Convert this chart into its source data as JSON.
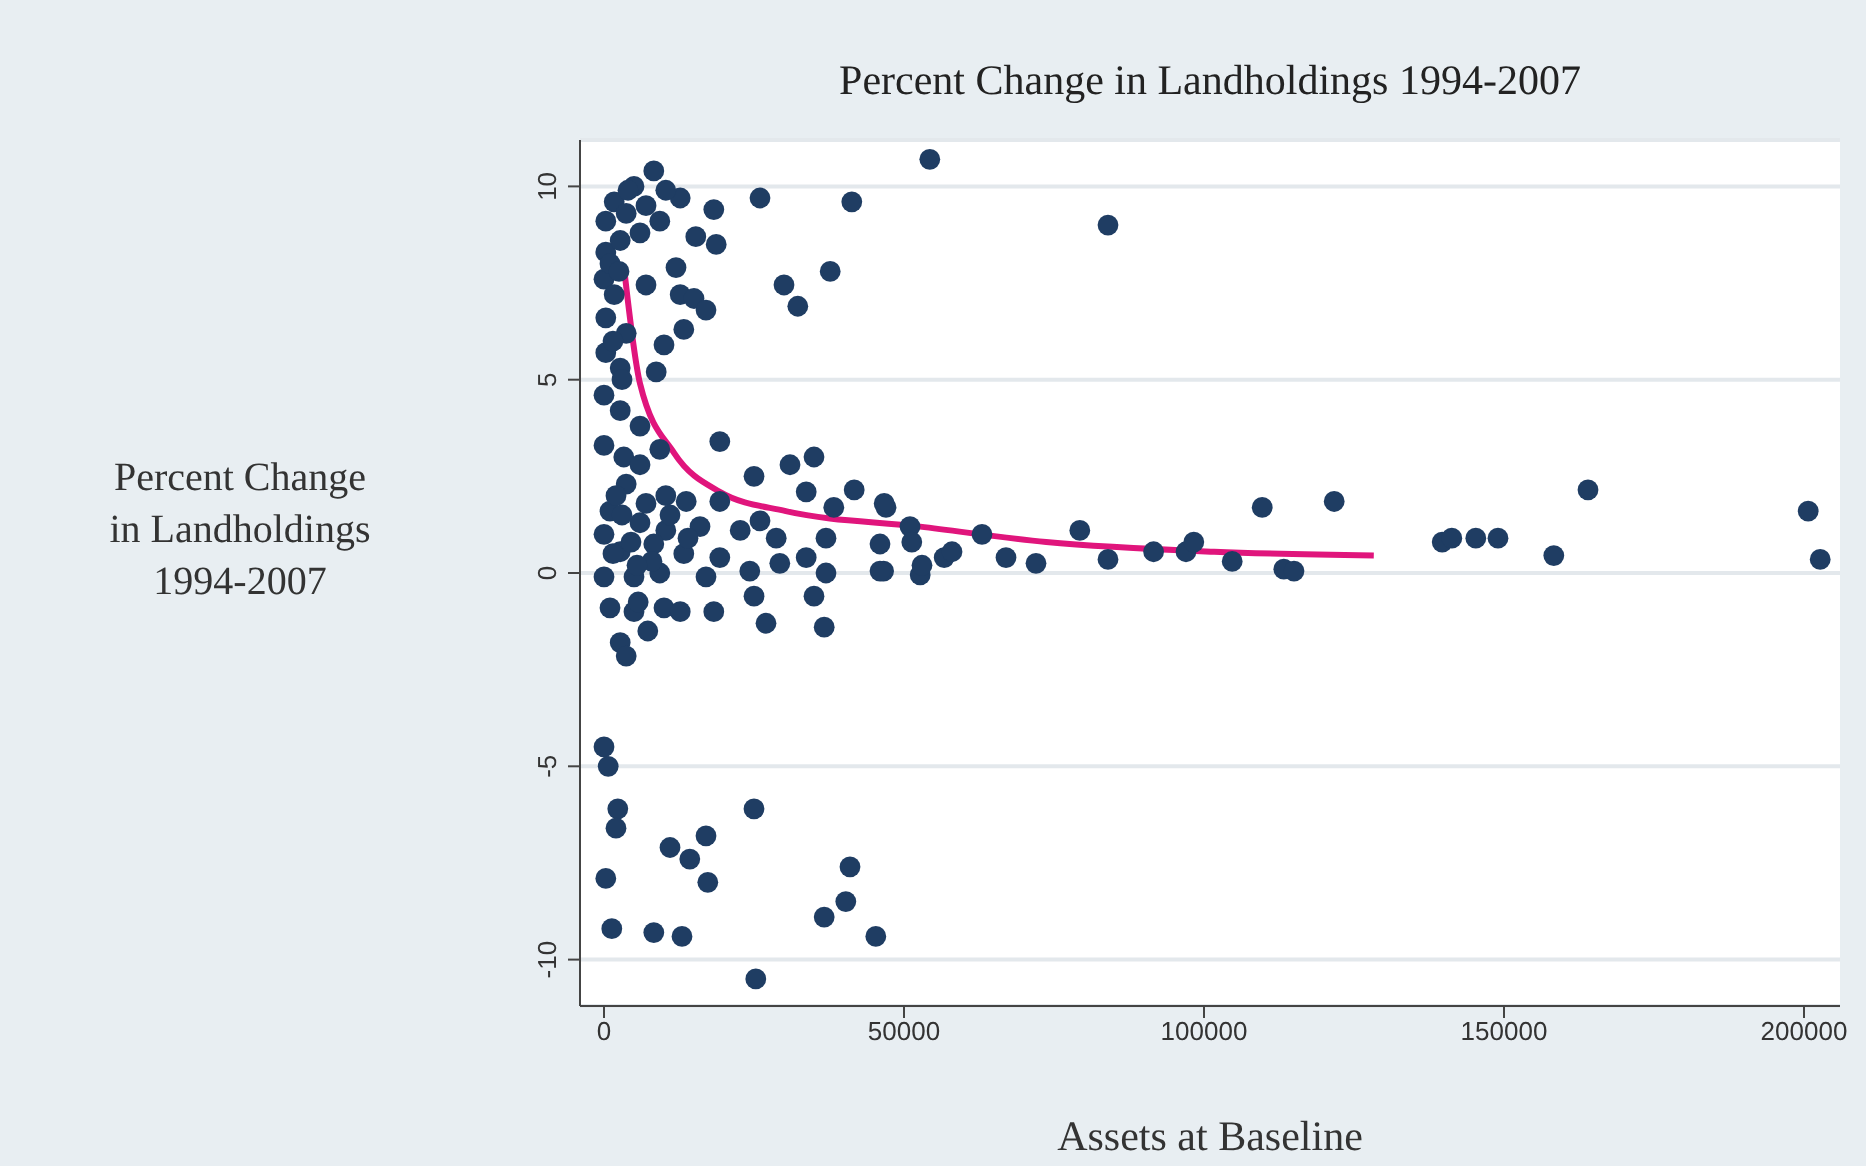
{
  "chart_data": {
    "type": "scatter",
    "title": "Percent Change in Landholdings 1994-2007",
    "xlabel": "Assets at Baseline",
    "ylabel": "Percent Change\nin Landholdings\n1994-2007",
    "xlim": [
      -4000,
      206000
    ],
    "xticks": [
      0,
      50000,
      100000,
      150000,
      200000
    ],
    "ylim": [
      -11.2,
      11.2
    ],
    "yticks": [
      -10,
      -5,
      0,
      5,
      10
    ],
    "grid": "y",
    "series": [
      {
        "type": "scatter",
        "color": "#1f3d63",
        "marker": "circle",
        "x": [
          54300,
          84000,
          47000,
          51000,
          51300,
          46600,
          52700,
          53000,
          56700,
          58000,
          63000,
          67000,
          72000,
          79300,
          84000,
          91600,
          97000,
          98300,
          104700,
          109700,
          113300,
          115000,
          121700,
          139700,
          141300,
          145300,
          149000,
          158300,
          164000,
          200700,
          202700,
          8300,
          26000,
          41300,
          18300,
          37700,
          30000,
          32300,
          18700,
          15300,
          12700,
          10300,
          5000,
          1700,
          300,
          3700,
          7000,
          300,
          2700,
          6000,
          9300,
          0,
          1700,
          7000,
          12000,
          12700,
          15000,
          17000,
          13300,
          300,
          3700,
          300,
          2700,
          8700,
          0,
          10000,
          2700,
          6000,
          19300,
          0,
          3300,
          6000,
          9300,
          31000,
          35000,
          25000,
          3700,
          10300,
          1000,
          13700,
          19300,
          41700,
          46700,
          33700,
          38300,
          6000,
          10300,
          16000,
          22700,
          26000,
          28700,
          37000,
          46000,
          2700,
          8300,
          13300,
          19300,
          24300,
          29300,
          33700,
          37000,
          0,
          5000,
          9300,
          17000,
          46000,
          1000,
          5000,
          10000,
          12700,
          18300,
          25000,
          35000,
          5700,
          27000,
          36700,
          2700,
          3700,
          7300,
          0,
          700,
          2300,
          2000,
          25000,
          300,
          11000,
          14300,
          17000,
          17300,
          1300,
          8300,
          13000,
          25300,
          36700,
          40300,
          41000,
          45300,
          0,
          1500,
          3000,
          4500,
          7000,
          8000,
          11000,
          14000,
          2000,
          5500,
          1000,
          2500,
          4000,
          1500,
          3000
        ],
        "values": [
          10.7,
          9.0,
          1.7,
          1.2,
          0.8,
          0.05,
          -0.05,
          0.2,
          0.4,
          0.55,
          1.0,
          0.4,
          0.25,
          1.1,
          0.35,
          0.55,
          0.55,
          0.8,
          0.3,
          1.7,
          0.1,
          0.05,
          1.85,
          0.8,
          0.9,
          0.9,
          0.9,
          0.45,
          2.15,
          1.6,
          0.35,
          10.4,
          9.7,
          9.6,
          9.4,
          7.8,
          7.45,
          6.9,
          8.5,
          8.7,
          9.7,
          9.9,
          10.0,
          9.6,
          9.1,
          9.3,
          9.5,
          8.3,
          8.6,
          8.8,
          9.1,
          7.6,
          7.2,
          7.45,
          7.9,
          7.2,
          7.1,
          6.8,
          6.3,
          6.6,
          6.2,
          5.7,
          5.3,
          5.2,
          4.6,
          5.9,
          4.2,
          3.8,
          3.4,
          3.3,
          3.0,
          2.8,
          3.2,
          2.8,
          3.0,
          2.5,
          2.3,
          2.0,
          1.6,
          1.85,
          1.85,
          2.15,
          1.8,
          2.1,
          1.7,
          1.3,
          1.1,
          1.2,
          1.1,
          1.35,
          0.9,
          0.9,
          0.75,
          0.55,
          0.75,
          0.5,
          0.4,
          0.05,
          0.25,
          0.4,
          0.0,
          -0.1,
          -0.1,
          0.0,
          -0.1,
          0.05,
          -0.9,
          -1.0,
          -0.9,
          -1.0,
          -1.0,
          -0.6,
          -0.6,
          -0.75,
          -1.3,
          -1.4,
          -1.8,
          -2.15,
          -1.5,
          -4.5,
          -5.0,
          -6.1,
          -6.6,
          -6.1,
          -7.9,
          -7.1,
          -7.4,
          -6.8,
          -8.0,
          -9.2,
          -9.3,
          -9.4,
          -10.5,
          -8.9,
          -8.5,
          -7.6,
          -9.4,
          1.0,
          0.5,
          1.5,
          0.8,
          1.8,
          0.3,
          1.5,
          0.9,
          2.0,
          0.2,
          8.0,
          7.8,
          9.9,
          6.0,
          5.0
        ]
      },
      {
        "type": "line",
        "color": "#e0157c",
        "marker": "none",
        "x": [
          3300,
          6000,
          11700,
          19300,
          30300,
          52700,
          73700,
          101700,
          128300
        ],
        "values": [
          7.95,
          4.9,
          3.1,
          2.1,
          1.6,
          1.2,
          0.8,
          0.55,
          0.45
        ]
      }
    ]
  }
}
